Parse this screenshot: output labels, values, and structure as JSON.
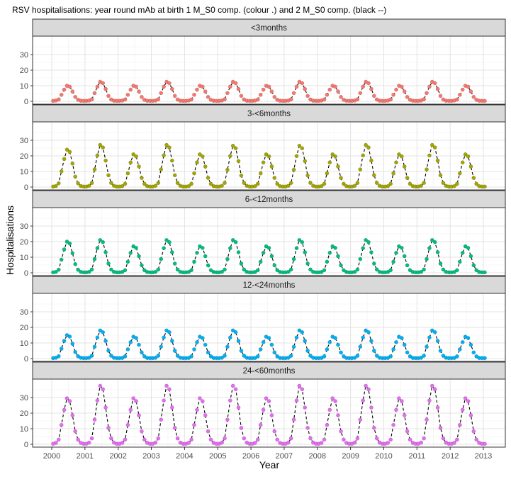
{
  "chart_data": {
    "type": "scatter",
    "title": "RSV hospitalisations: year round mAb at birth 1 M_S0 comp. (colour .) and 2 M_S0 comp. (black --)",
    "xlabel": "Year",
    "ylabel": "Hospitalisations",
    "xlim": [
      2000,
      2013
    ],
    "ylim": [
      0,
      40
    ],
    "x_ticks": [
      "2000",
      "2001",
      "2002",
      "2003",
      "2004",
      "2005",
      "2006",
      "2007",
      "2008",
      "2009",
      "2010",
      "2011",
      "2012",
      "2013"
    ],
    "y_ticks": [
      "0",
      "10",
      "20",
      "30"
    ],
    "grid": true,
    "legend": "none",
    "series_style": {
      "points": "scenario 1 (colour .)",
      "line": "scenario 2 (black --)",
      "line_color": "#000000"
    },
    "panels": [
      {
        "label": "<3months",
        "color": "#F8766D",
        "peaks": [
          10,
          12.5,
          10,
          12.5,
          10,
          12.5,
          10,
          12.5,
          10,
          12.5,
          10,
          12.5,
          10
        ]
      },
      {
        "label": "3-<6months",
        "color": "#A3A500",
        "peaks": [
          24,
          27,
          21,
          27,
          21,
          26.5,
          21,
          26.5,
          21,
          27,
          21,
          27,
          21
        ]
      },
      {
        "label": "6-<12months",
        "color": "#00BF7D",
        "peaks": [
          20,
          21,
          17,
          21,
          17,
          21,
          17,
          21,
          17,
          21,
          17,
          21,
          17
        ]
      },
      {
        "label": "12-<24months",
        "color": "#00B0F6",
        "peaks": [
          15,
          18,
          14,
          18,
          14,
          18,
          14,
          18,
          14,
          18,
          14,
          18,
          14
        ]
      },
      {
        "label": "24-<60months",
        "color": "#E76BF3",
        "peaks": [
          29.5,
          37.5,
          29.5,
          37.5,
          29.5,
          37.5,
          29.5,
          37.5,
          29.5,
          37.5,
          29.5,
          37.5,
          29.5
        ]
      }
    ],
    "series": [
      {
        "values": [
          0.3,
          0.5,
          1.2,
          4.2,
          7.5,
          10,
          9.4,
          6.3,
          2.8,
          1,
          0.4,
          0.3,
          0.3,
          0.5,
          1.3,
          5.3,
          9.4,
          12.5,
          11.7,
          7.9,
          3.5,
          1.2,
          0.4,
          0.3,
          0.3,
          0.5,
          1.2,
          4.2,
          7.5,
          10,
          9.4,
          6.3,
          2.8,
          1,
          0.4,
          0.3,
          0.3,
          0.5,
          1.3,
          5.3,
          9.4,
          12.5,
          11.7,
          7.9,
          3.5,
          1.2,
          0.4,
          0.3,
          0.3,
          0.5,
          1.2,
          4.2,
          7.5,
          10,
          9.4,
          6.3,
          2.8,
          1,
          0.4,
          0.3,
          0.3,
          0.5,
          1.3,
          5.3,
          9.4,
          12.5,
          11.7,
          7.9,
          3.5,
          1.2,
          0.4,
          0.3,
          0.3,
          0.5,
          1.2,
          4.2,
          7.5,
          10,
          9.4,
          6.3,
          2.8,
          1,
          0.4,
          0.3,
          0.3,
          0.5,
          1.3,
          5.3,
          9.4,
          12.5,
          11.7,
          7.9,
          3.5,
          1.2,
          0.4,
          0.3,
          0.3,
          0.5,
          1.2,
          4.2,
          7.5,
          10,
          9.4,
          6.3,
          2.8,
          1,
          0.4,
          0.3,
          0.3,
          0.5,
          1.3,
          5.3,
          9.4,
          12.5,
          11.7,
          7.9,
          3.5,
          1.2,
          0.4,
          0.3,
          0.3,
          0.5,
          1.2,
          4.2,
          7.5,
          10,
          9.4,
          6.3,
          2.8,
          1,
          0.4,
          0.3,
          0.3,
          0.5,
          1.3,
          5.3,
          9.4,
          12.5,
          11.7,
          7.9,
          3.5,
          1.2,
          0.4,
          0.3,
          0.3,
          0.5,
          1.2,
          4.2,
          7.5,
          10,
          9.4,
          6.3,
          2.8,
          1,
          0.4,
          0.3,
          0.3
        ]
      },
      {
        "values": [
          0.3,
          0.7,
          2.4,
          10.1,
          18,
          24,
          22.6,
          15.1,
          6.7,
          2.4,
          0.7,
          0.3,
          0.3,
          0.8,
          2.7,
          11.3,
          20.3,
          27,
          25.4,
          17,
          7.6,
          2.7,
          0.8,
          0.3,
          0.3,
          0.6,
          2.1,
          8.8,
          15.8,
          21,
          19.7,
          13.2,
          5.9,
          2.1,
          0.6,
          0.3,
          0.3,
          0.8,
          2.7,
          11.3,
          20.3,
          27,
          25.4,
          17,
          7.6,
          2.7,
          0.8,
          0.3,
          0.3,
          0.6,
          2.1,
          8.8,
          15.8,
          21,
          19.7,
          13.2,
          5.9,
          2.1,
          0.6,
          0.3,
          0.3,
          0.8,
          2.7,
          11.1,
          19.9,
          26.5,
          24.9,
          16.7,
          7.4,
          2.7,
          0.8,
          0.3,
          0.3,
          0.6,
          2.1,
          8.8,
          15.8,
          21,
          19.7,
          13.2,
          5.9,
          2.1,
          0.6,
          0.3,
          0.3,
          0.8,
          2.7,
          11.1,
          19.9,
          26.5,
          24.9,
          16.7,
          7.4,
          2.7,
          0.8,
          0.3,
          0.3,
          0.6,
          2.1,
          8.8,
          15.8,
          21,
          19.7,
          13.2,
          5.9,
          2.1,
          0.6,
          0.3,
          0.3,
          0.8,
          2.7,
          11.3,
          20.3,
          27,
          25.4,
          17,
          7.6,
          2.7,
          0.8,
          0.3,
          0.3,
          0.6,
          2.1,
          8.8,
          15.8,
          21,
          19.7,
          13.2,
          5.9,
          2.1,
          0.6,
          0.3,
          0.3,
          0.8,
          2.7,
          11.3,
          20.3,
          27,
          25.4,
          17,
          7.6,
          2.7,
          0.8,
          0.3,
          0.3,
          0.6,
          2.1,
          8.8,
          15.8,
          21,
          19.7,
          13.2,
          5.9,
          2.1,
          0.6,
          0.3,
          0.3
        ]
      },
      {
        "values": [
          0.3,
          0.6,
          2,
          8.4,
          15,
          20,
          18.8,
          12.6,
          5.6,
          2,
          0.6,
          0.3,
          0.3,
          0.6,
          2.1,
          8.8,
          15.8,
          21,
          19.7,
          13.2,
          5.9,
          2.1,
          0.6,
          0.3,
          0.3,
          0.5,
          1.7,
          7.1,
          12.8,
          17,
          16,
          10.7,
          4.8,
          1.7,
          0.5,
          0.3,
          0.3,
          0.6,
          2.1,
          8.8,
          15.8,
          21,
          19.7,
          13.2,
          5.9,
          2.1,
          0.6,
          0.3,
          0.3,
          0.5,
          1.7,
          7.1,
          12.8,
          17,
          16,
          10.7,
          4.8,
          1.7,
          0.5,
          0.3,
          0.3,
          0.6,
          2.1,
          8.8,
          15.8,
          21,
          19.7,
          13.2,
          5.9,
          2.1,
          0.6,
          0.3,
          0.3,
          0.5,
          1.7,
          7.1,
          12.8,
          17,
          16,
          10.7,
          4.8,
          1.7,
          0.5,
          0.3,
          0.3,
          0.6,
          2.1,
          8.8,
          15.8,
          21,
          19.7,
          13.2,
          5.9,
          2.1,
          0.6,
          0.3,
          0.3,
          0.5,
          1.7,
          7.1,
          12.8,
          17,
          16,
          10.7,
          4.8,
          1.7,
          0.5,
          0.3,
          0.3,
          0.6,
          2.1,
          8.8,
          15.8,
          21,
          19.7,
          13.2,
          5.9,
          2.1,
          0.6,
          0.3,
          0.3,
          0.5,
          1.7,
          7.1,
          12.8,
          17,
          16,
          10.7,
          4.8,
          1.7,
          0.5,
          0.3,
          0.3,
          0.6,
          2.1,
          8.8,
          15.8,
          21,
          19.7,
          13.2,
          5.9,
          2.1,
          0.6,
          0.3,
          0.3,
          0.5,
          1.7,
          7.1,
          12.8,
          17,
          16,
          10.7,
          4.8,
          1.7,
          0.5,
          0.3,
          0.3
        ]
      },
      {
        "values": [
          0.3,
          0.5,
          1.5,
          6.3,
          11.3,
          15,
          14.1,
          9.5,
          4.2,
          1.5,
          0.5,
          0.3,
          0.3,
          0.5,
          1.8,
          7.6,
          13.5,
          18,
          16.9,
          11.3,
          5,
          1.8,
          0.5,
          0.3,
          0.3,
          0.4,
          1.4,
          5.9,
          10.5,
          14,
          13.2,
          8.8,
          3.9,
          1.4,
          0.4,
          0.3,
          0.3,
          0.5,
          1.8,
          7.6,
          13.5,
          18,
          16.9,
          11.3,
          5,
          1.8,
          0.5,
          0.3,
          0.3,
          0.4,
          1.4,
          5.9,
          10.5,
          14,
          13.2,
          8.8,
          3.9,
          1.4,
          0.4,
          0.3,
          0.3,
          0.5,
          1.8,
          7.6,
          13.5,
          18,
          16.9,
          11.3,
          5,
          1.8,
          0.5,
          0.3,
          0.3,
          0.4,
          1.4,
          5.9,
          10.5,
          14,
          13.2,
          8.8,
          3.9,
          1.4,
          0.4,
          0.3,
          0.3,
          0.5,
          1.8,
          7.6,
          13.5,
          18,
          16.9,
          11.3,
          5,
          1.8,
          0.5,
          0.3,
          0.3,
          0.4,
          1.4,
          5.9,
          10.5,
          14,
          13.2,
          8.8,
          3.9,
          1.4,
          0.4,
          0.3,
          0.3,
          0.5,
          1.8,
          7.6,
          13.5,
          18,
          16.9,
          11.3,
          5,
          1.8,
          0.5,
          0.3,
          0.3,
          0.4,
          1.4,
          5.9,
          10.5,
          14,
          13.2,
          8.8,
          3.9,
          1.4,
          0.4,
          0.3,
          0.3,
          0.5,
          1.8,
          7.6,
          13.5,
          18,
          16.9,
          11.3,
          5,
          1.8,
          0.5,
          0.3,
          0.3,
          0.4,
          1.4,
          5.9,
          10.5,
          14,
          13.2,
          8.8,
          3.9,
          1.4,
          0.4,
          0.3,
          0.3
        ]
      },
      {
        "values": [
          0.3,
          0.9,
          3,
          12.4,
          22.1,
          29.5,
          27.7,
          18.6,
          8.3,
          3,
          0.9,
          0.3,
          0.3,
          1.1,
          3.8,
          15.8,
          28.1,
          37.5,
          35.3,
          23.6,
          10.5,
          3.8,
          1.1,
          0.3,
          0.3,
          0.9,
          3,
          12.4,
          22.1,
          29.5,
          27.7,
          18.6,
          8.3,
          3,
          0.9,
          0.3,
          0.3,
          1.1,
          3.8,
          15.8,
          28.1,
          37.5,
          35.3,
          23.6,
          10.5,
          3.8,
          1.1,
          0.3,
          0.3,
          0.9,
          3,
          12.4,
          22.1,
          29.5,
          27.7,
          18.6,
          8.3,
          3,
          0.9,
          0.3,
          0.3,
          1.1,
          3.8,
          15.8,
          28.1,
          37.5,
          35.3,
          23.6,
          10.5,
          3.8,
          1.1,
          0.3,
          0.3,
          0.9,
          3,
          12.4,
          22.1,
          29.5,
          27.7,
          18.6,
          8.3,
          3,
          0.9,
          0.3,
          0.3,
          1.1,
          3.8,
          15.8,
          28.1,
          37.5,
          35.3,
          23.6,
          10.5,
          3.8,
          1.1,
          0.3,
          0.3,
          0.9,
          3,
          12.4,
          22.1,
          29.5,
          27.7,
          18.6,
          8.3,
          3,
          0.9,
          0.3,
          0.3,
          1.1,
          3.8,
          15.8,
          28.1,
          37.5,
          35.3,
          23.6,
          10.5,
          3.8,
          1.1,
          0.3,
          0.3,
          0.9,
          3,
          12.4,
          22.1,
          29.5,
          27.7,
          18.6,
          8.3,
          3,
          0.9,
          0.3,
          0.3,
          1.1,
          3.8,
          15.8,
          28.1,
          37.5,
          35.3,
          23.6,
          10.5,
          3.8,
          1.1,
          0.3,
          0.3,
          0.9,
          3,
          12.4,
          22.1,
          29.5,
          27.7,
          18.6,
          8.3,
          3,
          0.9,
          0.3,
          0.3
        ]
      }
    ]
  }
}
